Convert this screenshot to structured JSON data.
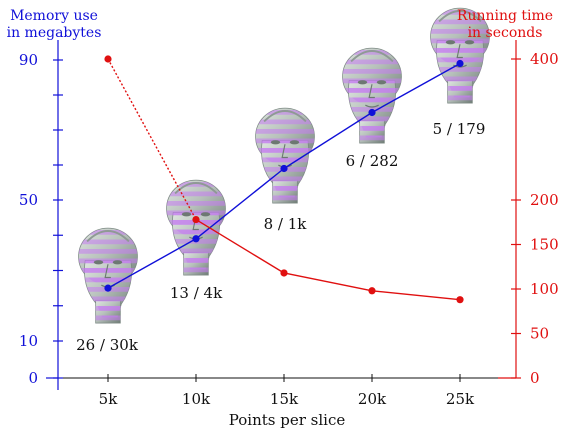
{
  "chart_data": {
    "type": "line",
    "title": "",
    "xlabel": "Points per slice",
    "x": [
      5000,
      10000,
      15000,
      20000,
      25000
    ],
    "x_tick_labels": [
      "5k",
      "10k",
      "15k",
      "20k",
      "25k"
    ],
    "xlim": [
      2000,
      27500
    ],
    "y_left": {
      "label_line1": "Memory use",
      "label_line2": "in megabytes",
      "ticks": [
        0,
        10,
        50,
        90
      ],
      "tick_labels": [
        "0",
        "10",
        "50",
        "90"
      ],
      "minor_ticks": [
        20,
        30,
        40,
        60,
        70,
        80
      ],
      "ylim": [
        0,
        95
      ],
      "color": "#1010d8"
    },
    "y_right": {
      "label_line1": "Running time",
      "label_line2": "in seconds",
      "ticks": [
        0,
        50,
        100,
        150,
        200,
        400
      ],
      "tick_labels": [
        "0",
        "50",
        "100",
        "150",
        "200",
        "400"
      ],
      "ylim": [
        0,
        420
      ],
      "color": "#e01010"
    },
    "series": [
      {
        "axis": "left",
        "color": "#1010d8",
        "values": [
          25,
          39,
          59,
          75,
          89
        ]
      },
      {
        "axis": "right",
        "color": "#e01010",
        "values": [
          400,
          178,
          118,
          98,
          88
        ],
        "dashed_first_segment": true
      }
    ],
    "annotations": [
      "26 / 30k",
      "13 / 4k",
      "8 / 1k",
      "6 / 282",
      "5 / 179"
    ],
    "point_thumbnails": "head-model-render"
  }
}
